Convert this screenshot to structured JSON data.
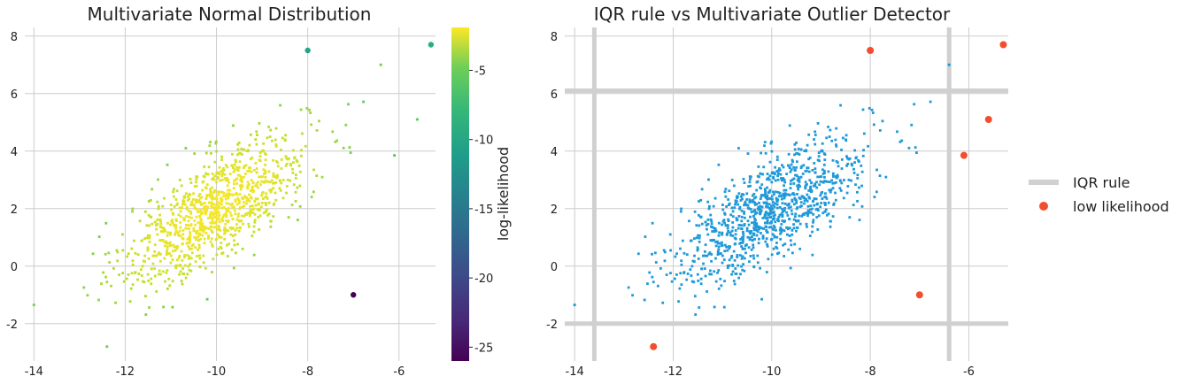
{
  "chart_data": [
    {
      "type": "scatter",
      "title": "Multivariate Normal Distribution",
      "xlabel": "",
      "ylabel": "",
      "xlim": [
        -14.2,
        -5.2
      ],
      "ylim": [
        -3.3,
        8.3
      ],
      "xticks": [
        -14,
        -12,
        -10,
        -8,
        -6
      ],
      "yticks": [
        -2,
        0,
        2,
        4,
        6,
        8
      ],
      "grid": true,
      "colorbar": {
        "label": "log-likelihood",
        "range": [
          -26,
          -1.9
        ],
        "ticks": [
          -5,
          -10,
          -15,
          -20,
          -25
        ],
        "colormap": "viridis"
      },
      "distribution": {
        "n_points": 1000,
        "mean_x": -10,
        "mean_y": 2,
        "sd_x": 1,
        "sd_y": 1.3,
        "correlation": 0.72
      },
      "points": [
        {
          "x": -8.0,
          "y": 7.5,
          "loglik": -12
        },
        {
          "x": -7.0,
          "y": -1.0,
          "loglik": -26
        },
        {
          "x": -5.3,
          "y": 7.7,
          "loglik": -11
        },
        {
          "x": -5.6,
          "y": 5.1,
          "loglik": -8
        },
        {
          "x": -6.1,
          "y": 3.85,
          "loglik": -8
        },
        {
          "x": -12.4,
          "y": -2.8,
          "loglik": -7
        },
        {
          "x": -14.0,
          "y": -1.35,
          "loglik": -7
        },
        {
          "x": -6.4,
          "y": 7.0,
          "loglik": -7
        }
      ]
    },
    {
      "type": "scatter",
      "title": "IQR rule vs Multivariate Outlier Detector",
      "xlabel": "",
      "ylabel": "",
      "xlim": [
        -14.2,
        -5.2
      ],
      "ylim": [
        -3.3,
        8.3
      ],
      "xticks": [
        -14,
        -12,
        -10,
        -8,
        -6
      ],
      "yticks": [
        -2,
        0,
        2,
        4,
        6,
        8
      ],
      "grid": true,
      "iqr_bounds": {
        "x": [
          -13.6,
          -6.4
        ],
        "y": [
          -2.0,
          6.1
        ]
      },
      "low_likelihood_points": [
        {
          "x": -8.0,
          "y": 7.5
        },
        {
          "x": -5.3,
          "y": 7.7
        },
        {
          "x": -5.6,
          "y": 5.1
        },
        {
          "x": -6.1,
          "y": 3.85
        },
        {
          "x": -7.0,
          "y": -1.0
        },
        {
          "x": -12.4,
          "y": -2.8
        }
      ],
      "series_colors": {
        "points": "#1f99d8",
        "iqr": "#d0d0d0",
        "outliers": "#f24e2e"
      },
      "legend": {
        "placement": "right",
        "entries": [
          "IQR rule",
          "low likelihood"
        ]
      }
    }
  ]
}
